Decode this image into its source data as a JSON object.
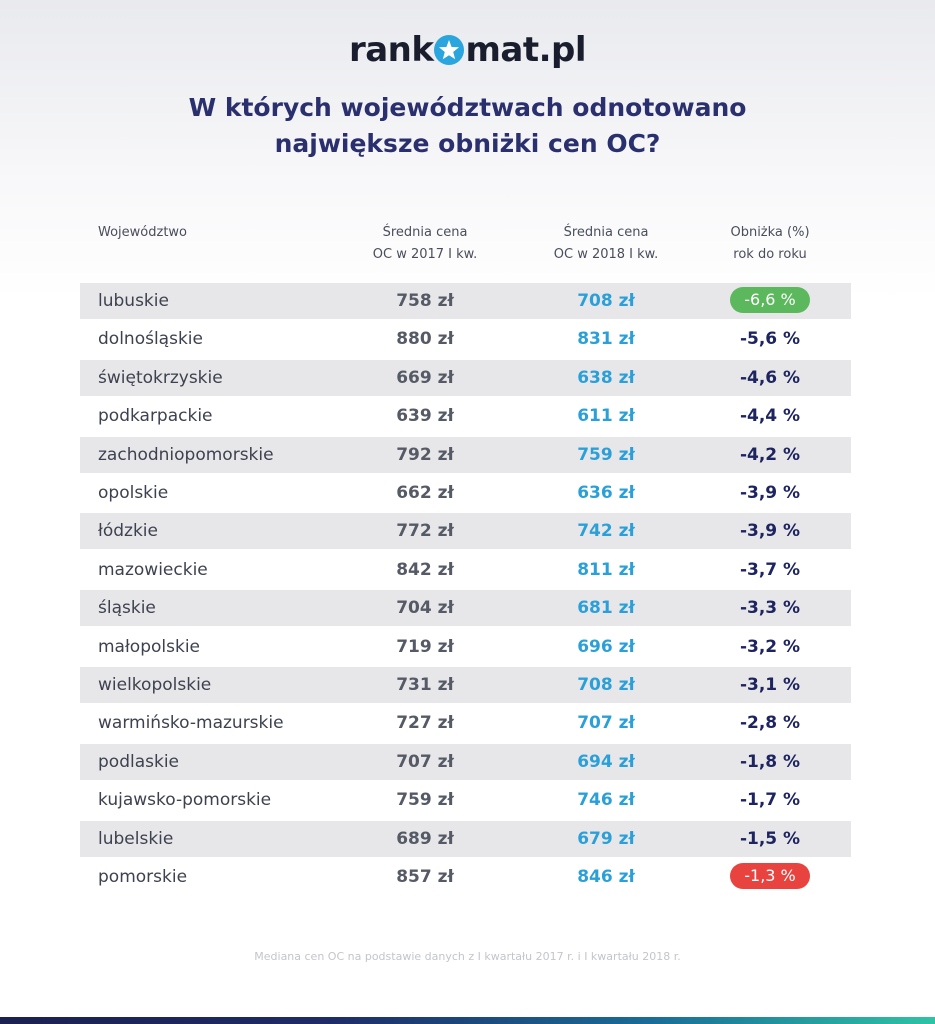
{
  "brand": {
    "prefix": "rank",
    "suffix": "mat.pl",
    "star_icon": "star-icon",
    "accent": "#2aa5dd"
  },
  "title": {
    "line1": "W których województwach odnotowano",
    "line2": "największe obniżki cen OC?"
  },
  "chart_data": {
    "type": "table",
    "columns": {
      "region": "Województwo",
      "price_2017_l1": "Średnia cena",
      "price_2017_l2": "OC w 2017 I kw.",
      "price_2018_l1": "Średnia cena",
      "price_2018_l2": "OC w 2018 I kw.",
      "drop_l1": "Obniżka (%)",
      "drop_l2": "rok do roku"
    },
    "rows": [
      {
        "region": "lubuskie",
        "price_2017": "758 zł",
        "price_2018": "708 zł",
        "drop": "-6,6 %",
        "highlight": "green"
      },
      {
        "region": "dolnośląskie",
        "price_2017": "880 zł",
        "price_2018": "831 zł",
        "drop": "-5,6 %"
      },
      {
        "region": "świętokrzyskie",
        "price_2017": "669 zł",
        "price_2018": "638 zł",
        "drop": "-4,6 %"
      },
      {
        "region": "podkarpackie",
        "price_2017": "639 zł",
        "price_2018": "611 zł",
        "drop": "-4,4 %"
      },
      {
        "region": "zachodniopomorskie",
        "price_2017": "792 zł",
        "price_2018": "759 zł",
        "drop": "-4,2 %"
      },
      {
        "region": "opolskie",
        "price_2017": "662 zł",
        "price_2018": "636 zł",
        "drop": "-3,9 %"
      },
      {
        "region": "łódzkie",
        "price_2017": "772 zł",
        "price_2018": "742 zł",
        "drop": "-3,9 %"
      },
      {
        "region": "mazowieckie",
        "price_2017": "842 zł",
        "price_2018": "811 zł",
        "drop": "-3,7 %"
      },
      {
        "region": "śląskie",
        "price_2017": "704 zł",
        "price_2018": "681 zł",
        "drop": "-3,3 %"
      },
      {
        "region": "małopolskie",
        "price_2017": "719 zł",
        "price_2018": "696 zł",
        "drop": "-3,2 %"
      },
      {
        "region": "wielkopolskie",
        "price_2017": "731 zł",
        "price_2018": "708 zł",
        "drop": "-3,1 %"
      },
      {
        "region": "warmińsko-mazurskie",
        "price_2017": "727 zł",
        "price_2018": "707 zł",
        "drop": "-2,8 %"
      },
      {
        "region": "podlaskie",
        "price_2017": "707 zł",
        "price_2018": "694 zł",
        "drop": "-1,8 %"
      },
      {
        "region": "kujawsko-pomorskie",
        "price_2017": "759 zł",
        "price_2018": "746 zł",
        "drop": "-1,7 %"
      },
      {
        "region": "lubelskie",
        "price_2017": "689 zł",
        "price_2018": "679 zł",
        "drop": "-1,5 %"
      },
      {
        "region": "pomorskie",
        "price_2017": "857 zł",
        "price_2018": "846 zł",
        "drop": "-1,3 %",
        "highlight": "red"
      }
    ]
  },
  "footnote": "Mediana cen OC na podstawie danych z I kwartału 2017 r. i I kwartału 2018 r.",
  "colors": {
    "title": "#2a2f6e",
    "price_2018": "#2ba0d8",
    "drop": "#1e2460",
    "green": "#5cb85c",
    "red": "#e9433f"
  }
}
